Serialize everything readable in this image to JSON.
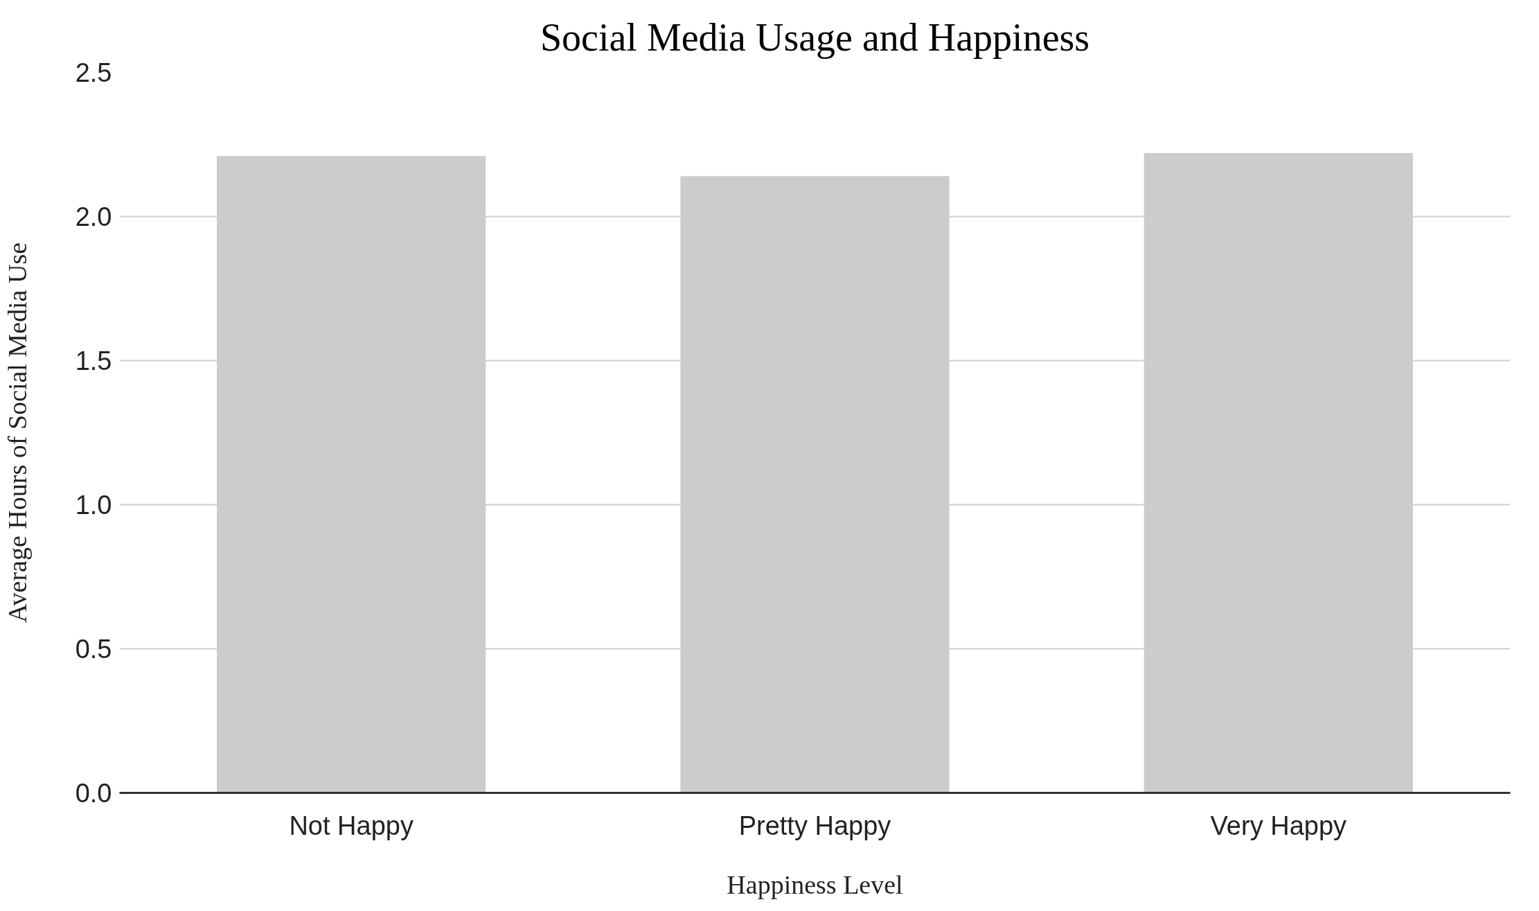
{
  "chart_data": {
    "type": "bar",
    "title": "Social Media Usage and Happiness",
    "xlabel": "Happiness Level",
    "ylabel": "Average Hours of Social Media Use",
    "categories": [
      "Not Happy",
      "Pretty Happy",
      "Very Happy"
    ],
    "values": [
      2.21,
      2.14,
      2.22
    ],
    "color": "#cccccc",
    "ylim": [
      0,
      2.5
    ],
    "yticks": [
      {
        "value": 0,
        "label": "0.0"
      },
      {
        "value": 0.5,
        "label": "0.5"
      },
      {
        "value": 1,
        "label": "1.0"
      },
      {
        "value": 1.5,
        "label": "1.5"
      },
      {
        "value": 2,
        "label": "2.0"
      },
      {
        "value": 2.5,
        "label": "2.5"
      }
    ],
    "grid": "y"
  }
}
